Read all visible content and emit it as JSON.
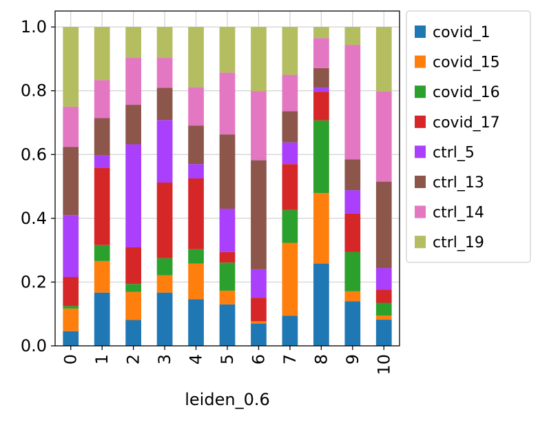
{
  "chart_data": {
    "type": "bar",
    "stacked": true,
    "xlabel": "leiden_0.6",
    "ylabel": "",
    "ylim": [
      0,
      1.05
    ],
    "yticks": [
      "0.0",
      "0.2",
      "0.4",
      "0.6",
      "0.8",
      "1.0"
    ],
    "grid": true,
    "legend_position": "outside-right",
    "categories": [
      "0",
      "1",
      "2",
      "3",
      "4",
      "5",
      "6",
      "7",
      "8",
      "9",
      "10"
    ],
    "series": [
      {
        "name": "covid_1",
        "color": "#1f77b4",
        "values": [
          0.046,
          0.167,
          0.081,
          0.167,
          0.146,
          0.13,
          0.07,
          0.094,
          0.258,
          0.14,
          0.082
        ]
      },
      {
        "name": "covid_15",
        "color": "#ff7f0e",
        "values": [
          0.071,
          0.099,
          0.088,
          0.054,
          0.112,
          0.043,
          0.007,
          0.229,
          0.221,
          0.031,
          0.013
        ]
      },
      {
        "name": "covid_16",
        "color": "#2ca02c",
        "values": [
          0.008,
          0.05,
          0.025,
          0.054,
          0.045,
          0.088,
          0.0,
          0.103,
          0.228,
          0.123,
          0.04
        ]
      },
      {
        "name": "covid_17",
        "color": "#d62728",
        "values": [
          0.091,
          0.243,
          0.115,
          0.237,
          0.222,
          0.033,
          0.074,
          0.144,
          0.09,
          0.121,
          0.041
        ]
      },
      {
        "name": "ctrl_5",
        "color": "#aa40fc",
        "values": [
          0.194,
          0.038,
          0.323,
          0.196,
          0.045,
          0.136,
          0.089,
          0.068,
          0.013,
          0.073,
          0.068
        ]
      },
      {
        "name": "ctrl_13",
        "color": "#8c564b",
        "values": [
          0.214,
          0.117,
          0.124,
          0.101,
          0.121,
          0.233,
          0.342,
          0.098,
          0.061,
          0.097,
          0.271
        ]
      },
      {
        "name": "ctrl_14",
        "color": "#e377c2",
        "values": [
          0.126,
          0.119,
          0.148,
          0.094,
          0.12,
          0.194,
          0.217,
          0.114,
          0.094,
          0.359,
          0.283
        ]
      },
      {
        "name": "ctrl_19",
        "color": "#b5bd61",
        "values": [
          0.25,
          0.167,
          0.096,
          0.097,
          0.189,
          0.143,
          0.201,
          0.15,
          0.035,
          0.056,
          0.202
        ]
      }
    ]
  }
}
